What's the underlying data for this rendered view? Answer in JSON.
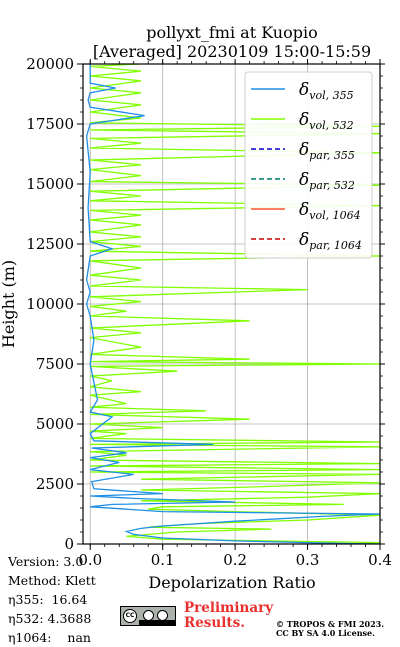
{
  "chart_data": {
    "type": "line",
    "title": "pollyxt_fmi at Kuopio",
    "subtitle": "[Averaged] 20230109 15:00-15:59",
    "xlabel": "Depolarization Ratio",
    "ylabel": "Height (m)",
    "xlim": [
      -0.01,
      0.4
    ],
    "ylim": [
      0,
      20000
    ],
    "xticks": [
      "0.0",
      "0.1",
      "0.2",
      "0.3",
      "0.4"
    ],
    "yticks": [
      "0",
      "2500",
      "5000",
      "7500",
      "10000",
      "12500",
      "15000",
      "17500",
      "20000"
    ],
    "grid": true,
    "legend_position": "top-right",
    "legend": [
      {
        "sym": "δ",
        "sub": "vol, 355",
        "color": "#1f8fe6",
        "dash": "solid"
      },
      {
        "sym": "δ",
        "sub": "vol, 532",
        "color": "#80ff00",
        "dash": "solid"
      },
      {
        "sym": "δ",
        "sub": "par, 355",
        "color": "#0000cc",
        "dash": "dashed"
      },
      {
        "sym": "δ",
        "sub": "par, 532",
        "color": "#008066",
        "dash": "dashed"
      },
      {
        "sym": "δ",
        "sub": "vol, 1064",
        "color": "#ff5533",
        "dash": "solid"
      },
      {
        "sym": "δ",
        "sub": "par, 1064",
        "color": "#cc0000",
        "dash": "dashed"
      }
    ],
    "series": [
      {
        "name": "δ vol, 355",
        "color": "#1f8fe6",
        "points": [
          [
            0.4,
            0
          ],
          [
            0.32,
            40
          ],
          [
            0.2,
            130
          ],
          [
            0.1,
            250
          ],
          [
            0.06,
            400
          ],
          [
            0.05,
            520
          ],
          [
            0.07,
            650
          ],
          [
            0.1,
            750
          ],
          [
            0.15,
            850
          ],
          [
            0.2,
            950
          ],
          [
            0.26,
            1050
          ],
          [
            0.32,
            1150
          ],
          [
            0.4,
            1250
          ],
          [
            0.1,
            1350
          ],
          [
            0.05,
            1450
          ],
          [
            0.0,
            1550
          ],
          [
            0.03,
            1650
          ],
          [
            0.2,
            1750
          ],
          [
            0.06,
            1900
          ],
          [
            0.0,
            2000
          ],
          [
            0.1,
            2100
          ],
          [
            0.005,
            2300
          ],
          [
            0.002,
            2600
          ],
          [
            0.06,
            2900
          ],
          [
            0.0,
            3100
          ],
          [
            0.04,
            3400
          ],
          [
            0.0,
            3600
          ],
          [
            0.05,
            3800
          ],
          [
            0.002,
            4000
          ],
          [
            0.17,
            4150
          ],
          [
            0.005,
            4300
          ],
          [
            0.0,
            4600
          ],
          [
            0.03,
            5300
          ],
          [
            0.0,
            5500
          ],
          [
            0.01,
            6000
          ],
          [
            0.0,
            7500
          ],
          [
            0.005,
            8500
          ],
          [
            0.0,
            9500
          ],
          [
            -0.005,
            10000
          ],
          [
            0.0,
            10500
          ],
          [
            -0.005,
            11000
          ],
          [
            0.0,
            12000
          ],
          [
            0.03,
            12300
          ],
          [
            0.0,
            12600
          ],
          [
            -0.003,
            14000
          ],
          [
            0.0,
            15500
          ],
          [
            -0.005,
            17000
          ],
          [
            0.0,
            17500
          ],
          [
            0.075,
            17850
          ],
          [
            0.0,
            18200
          ],
          [
            -0.003,
            18500
          ],
          [
            0.0,
            18800
          ],
          [
            0.035,
            19000
          ],
          [
            0.0,
            19200
          ],
          [
            0.0,
            20000
          ]
        ]
      },
      {
        "name": "δ vol, 532",
        "color": "#80ff00",
        "points": [
          [
            0.35,
            0
          ],
          [
            0.4,
            60
          ],
          [
            0.1,
            200
          ],
          [
            0.05,
            320
          ],
          [
            0.12,
            500
          ],
          [
            0.25,
            620
          ],
          [
            0.08,
            700
          ],
          [
            0.15,
            850
          ],
          [
            0.3,
            1000
          ],
          [
            0.4,
            1200
          ],
          [
            0.2,
            1350
          ],
          [
            0.08,
            1450
          ],
          [
            0.1,
            1550
          ],
          [
            0.35,
            1650
          ],
          [
            0.07,
            1800
          ],
          [
            0.3,
            1950
          ],
          [
            0.4,
            2100
          ],
          [
            0.07,
            2250
          ],
          [
            0.25,
            2400
          ],
          [
            0.4,
            2550
          ],
          [
            0.07,
            2700
          ],
          [
            0.4,
            2900
          ],
          [
            0.0,
            3000
          ],
          [
            0.4,
            3100
          ],
          [
            0.0,
            3250
          ],
          [
            0.4,
            3350
          ],
          [
            0.0,
            3500
          ],
          [
            0.05,
            3700
          ],
          [
            0.0,
            3850
          ],
          [
            0.4,
            4050
          ],
          [
            0.0,
            4150
          ],
          [
            0.4,
            4250
          ],
          [
            0.0,
            4400
          ],
          [
            0.05,
            4600
          ],
          [
            0.0,
            4700
          ],
          [
            0.1,
            4850
          ],
          [
            0.0,
            5000
          ],
          [
            0.22,
            5200
          ],
          [
            0.0,
            5400
          ],
          [
            0.16,
            5550
          ],
          [
            0.0,
            5700
          ],
          [
            0.05,
            5850
          ],
          [
            0.0,
            6200
          ],
          [
            0.07,
            6350
          ],
          [
            0.0,
            6550
          ],
          [
            0.03,
            6800
          ],
          [
            0.0,
            7000
          ],
          [
            0.12,
            7200
          ],
          [
            0.0,
            7400
          ],
          [
            0.4,
            7500
          ],
          [
            0.0,
            7600
          ],
          [
            0.22,
            7700
          ],
          [
            0.0,
            7900
          ],
          [
            0.07,
            8200
          ],
          [
            0.0,
            8600
          ],
          [
            0.07,
            8800
          ],
          [
            0.0,
            9000
          ],
          [
            0.22,
            9300
          ],
          [
            0.0,
            9500
          ],
          [
            0.05,
            9700
          ],
          [
            0.0,
            9900
          ],
          [
            0.07,
            10100
          ],
          [
            0.0,
            10300
          ],
          [
            0.3,
            10600
          ],
          [
            0.0,
            10750
          ],
          [
            0.07,
            11000
          ],
          [
            0.0,
            11200
          ],
          [
            0.07,
            11500
          ],
          [
            0.0,
            11800
          ],
          [
            0.4,
            12000
          ],
          [
            0.0,
            12200
          ],
          [
            0.07,
            12400
          ],
          [
            0.0,
            12600
          ],
          [
            0.07,
            12800
          ],
          [
            0.0,
            13000
          ],
          [
            0.07,
            13300
          ],
          [
            0.0,
            13500
          ],
          [
            0.07,
            13700
          ],
          [
            0.0,
            13900
          ],
          [
            0.4,
            14100
          ],
          [
            0.0,
            14300
          ],
          [
            0.07,
            14500
          ],
          [
            0.0,
            14700
          ],
          [
            0.4,
            14950
          ],
          [
            0.0,
            15100
          ],
          [
            0.07,
            15350
          ],
          [
            0.0,
            15600
          ],
          [
            0.07,
            15800
          ],
          [
            0.0,
            16000
          ],
          [
            0.4,
            16300
          ],
          [
            0.0,
            16500
          ],
          [
            0.07,
            16700
          ],
          [
            0.0,
            16900
          ],
          [
            0.4,
            17100
          ],
          [
            0.0,
            17250
          ],
          [
            0.4,
            17400
          ],
          [
            0.0,
            17550
          ],
          [
            0.07,
            17750
          ],
          [
            0.0,
            18000
          ],
          [
            0.07,
            18300
          ],
          [
            0.0,
            18500
          ],
          [
            0.07,
            18800
          ],
          [
            0.0,
            19000
          ],
          [
            0.07,
            19300
          ],
          [
            0.0,
            19500
          ],
          [
            0.07,
            19700
          ],
          [
            0.0,
            19900
          ],
          [
            0.07,
            20000
          ]
        ]
      }
    ]
  },
  "meta": {
    "version": "Version: 3.0",
    "method": "Method: Klett",
    "eta355": "η355:  16.64",
    "eta532": "η532: 4.3688",
    "eta1064": "η1064:    nan"
  },
  "footer": {
    "cc_logo": "cc-by-sa-icon",
    "cc_text": "CC",
    "preliminary": "Preliminary\nResults.",
    "license": "© TROPOS & FMI 2023.\nCC BY SA 4.0 License."
  }
}
